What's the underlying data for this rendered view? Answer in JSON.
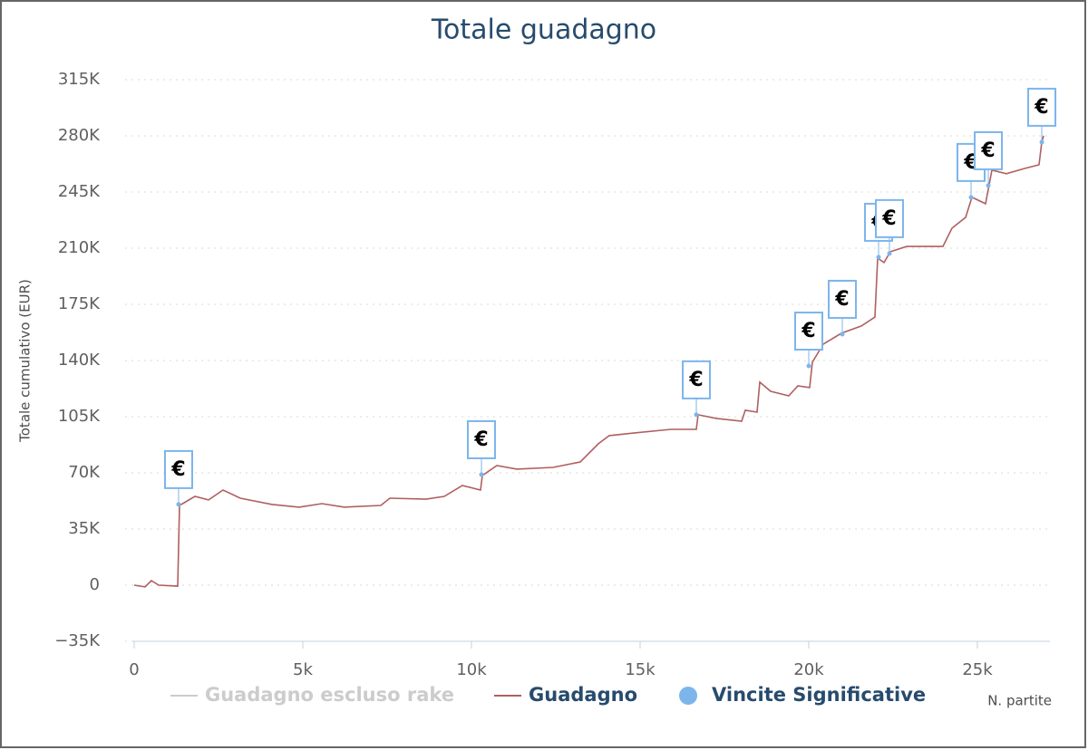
{
  "chart_data": {
    "type": "line",
    "title": "Totale guadagno",
    "y_axis_title": "Totale cumulativo (EUR)",
    "x_axis_title": "N. partite",
    "xlim": [
      0,
      27150
    ],
    "ylim": [
      -35000,
      315000
    ],
    "xticks": [
      0,
      {
        "value": 5000,
        "label": "5k"
      },
      {
        "value": 10000,
        "label": "10k"
      },
      {
        "value": 15000,
        "label": "15k"
      },
      {
        "value": 20000,
        "label": "20k"
      },
      {
        "value": 25000,
        "label": "25k"
      }
    ],
    "yticks": [
      {
        "value": -35000,
        "label": "−35K"
      },
      0,
      {
        "value": 35000,
        "label": "35K"
      },
      {
        "value": 70000,
        "label": "70K"
      },
      {
        "value": 105000,
        "label": "105K"
      },
      {
        "value": 140000,
        "label": "140K"
      },
      {
        "value": 175000,
        "label": "175K"
      },
      {
        "value": 210000,
        "label": "210K"
      },
      {
        "value": 245000,
        "label": "245K"
      },
      {
        "value": 280000,
        "label": "280K"
      },
      {
        "value": 315000,
        "label": "315K"
      }
    ],
    "grid": true,
    "series": [
      {
        "name": "Guadagno escluso rake",
        "color": "#cccccc",
        "visible": false
      },
      {
        "name": "Guadagno",
        "color": "#b05f5f",
        "kind": "line",
        "x": [
          0,
          323,
          510,
          726,
          1290,
          1344,
          1800,
          2204,
          2634,
          3145,
          4086,
          4892,
          5565,
          6237,
          7312,
          7581,
          8656,
          9194,
          9731,
          10269,
          10323,
          10753,
          11344,
          12419,
          13226,
          13763,
          14086,
          14839,
          15914,
          16667,
          16720,
          17258,
          18011,
          18118,
          18468,
          18548,
          18871,
          19409,
          19677,
          20027,
          20108,
          20430,
          20968,
          21559,
          21962,
          22043,
          22231,
          22419,
          22903,
          23978,
          24247,
          24651,
          24839,
          25242,
          25430,
          25860,
          26398,
          26828,
          26909,
          26962
        ],
        "values": [
          0,
          -1100,
          2800,
          0,
          -600,
          49700,
          55300,
          53100,
          59300,
          54200,
          50300,
          48600,
          50800,
          48600,
          49700,
          54200,
          53600,
          55300,
          62100,
          59300,
          68300,
          74500,
          72300,
          73400,
          76800,
          88100,
          93200,
          94900,
          97100,
          97100,
          106200,
          103900,
          102200,
          109000,
          107800,
          126500,
          120800,
          118000,
          124200,
          123100,
          138900,
          150200,
          157000,
          161500,
          167100,
          203800,
          201000,
          207800,
          211100,
          211100,
          222500,
          229200,
          241700,
          237700,
          258600,
          256400,
          259700,
          262000,
          276100,
          280100
        ]
      },
      {
        "name": "Vincite Significative",
        "color": "#7cb5ec",
        "kind": "flags",
        "flag_label": "€",
        "x": [
          1317,
          10296,
          16667,
          20000,
          20995,
          22070,
          22392,
          24812,
          25323,
          26909
        ],
        "values": [
          50300,
          68900,
          106200,
          136600,
          156400,
          204400,
          206700,
          241700,
          249000,
          276100
        ]
      }
    ]
  }
}
